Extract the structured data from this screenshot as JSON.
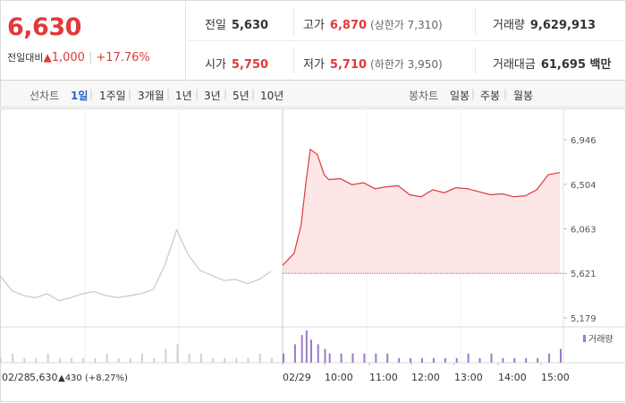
{
  "header": {
    "price": "6,630",
    "change_label": "전일대비",
    "change_arrow": "▲",
    "change_value": "1,000",
    "change_pct": "+17.76%",
    "prev_close_label": "전일",
    "prev_close": "5,630",
    "high_label": "고가",
    "high": "6,870",
    "upper_limit": "(상한가 7,310)",
    "volume_label": "거래량",
    "volume": "9,629,913",
    "open_label": "시가",
    "open": "5,750",
    "low_label": "저가",
    "low": "5,710",
    "lower_limit": "(하한가 3,950)",
    "trade_amount_label": "거래대금",
    "trade_amount": "61,695 백만"
  },
  "tabs": {
    "line_chart_label": "선차트",
    "line_periods": [
      "1일",
      "1주일",
      "3개월",
      "1년",
      "3년",
      "5년",
      "10년"
    ],
    "active_period": "1일",
    "candle_chart_label": "봉차트",
    "candle_periods": [
      "일봉",
      "주봉",
      "월봉"
    ]
  },
  "colors": {
    "up": "#e03a3a",
    "down": "#2a64c8",
    "prev_line": "#c8c8c8",
    "volume_today": "#9a7cc8"
  },
  "chart_data": {
    "type": "line",
    "title": "",
    "y_ticks": [
      "6,946",
      "6,504",
      "6,063",
      "5,621",
      "5,179"
    ],
    "ylim": [
      5179,
      6946
    ],
    "reference_price": 5621,
    "x_labels": [
      "02/29",
      "10:00",
      "11:00",
      "12:00",
      "13:00",
      "14:00",
      "15:00"
    ],
    "prev_day_label": "02/28",
    "prev_day_close": "5,630",
    "prev_day_change": "▲430 (+8.27%)",
    "volume_legend": "거래량",
    "series": [
      {
        "name": "02/28",
        "x": [
          0,
          5,
          10,
          15,
          20,
          25,
          30,
          35,
          40,
          45,
          50,
          55,
          60,
          65,
          70,
          75,
          80,
          85,
          90,
          95,
          100,
          105,
          110,
          115
        ],
        "y": [
          5600,
          5450,
          5400,
          5380,
          5420,
          5350,
          5380,
          5420,
          5440,
          5400,
          5380,
          5400,
          5420,
          5460,
          5700,
          6050,
          5800,
          5650,
          5600,
          5550,
          5560,
          5520,
          5560,
          5640
        ]
      },
      {
        "name": "02/29",
        "x": [
          0,
          5,
          8,
          10,
          12,
          15,
          18,
          20,
          25,
          30,
          35,
          40,
          45,
          50,
          55,
          60,
          65,
          70,
          75,
          80,
          85,
          90,
          95,
          100,
          105,
          110,
          115,
          120
        ],
        "y": [
          5700,
          5820,
          6100,
          6500,
          6850,
          6800,
          6600,
          6550,
          6560,
          6500,
          6520,
          6460,
          6480,
          6490,
          6400,
          6380,
          6450,
          6420,
          6470,
          6460,
          6430,
          6400,
          6410,
          6380,
          6390,
          6450,
          6600,
          6620
        ]
      }
    ],
    "volume_prev": [
      1,
      2,
      1,
      1,
      2,
      1,
      1,
      1,
      1,
      2,
      1,
      1,
      2,
      1,
      3,
      4,
      2,
      2,
      1,
      1,
      1,
      1,
      2,
      1
    ],
    "volume_today": [
      2,
      4,
      6,
      7,
      5,
      4,
      3,
      2,
      2,
      2,
      2,
      2,
      2,
      1,
      1,
      1,
      1,
      1,
      1,
      2,
      1,
      2,
      1,
      1,
      1,
      1,
      2,
      3
    ]
  }
}
